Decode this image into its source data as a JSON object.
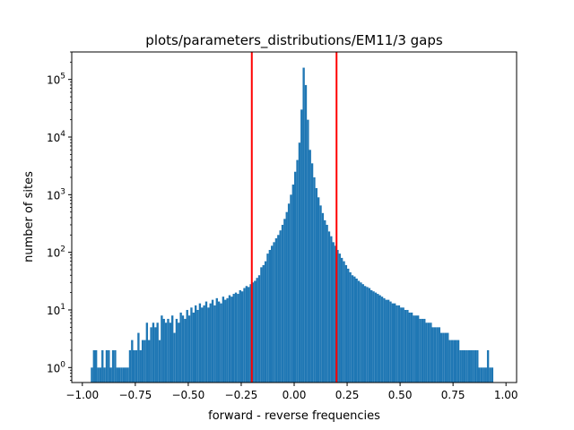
{
  "chart_data": {
    "type": "bar",
    "title": "plots/parameters_distributions/EM11/3 gaps",
    "xlabel": "forward - reverse frequencies",
    "ylabel": "number of sites",
    "xlim": [
      -1.05,
      1.05
    ],
    "ylim": [
      0.55,
      300000
    ],
    "yscale": "log",
    "grid": false,
    "bar_color": "#1f77b4",
    "line_color": "#ff0000",
    "vlines": [
      -0.2,
      0.2
    ],
    "bin_start": -0.96,
    "bin_width": 0.01,
    "values": [
      1,
      2,
      2,
      1,
      1,
      2,
      1,
      2,
      2,
      1,
      2,
      2,
      1,
      1,
      1,
      1,
      1,
      1,
      2,
      3,
      2,
      2,
      4,
      2,
      3,
      3,
      6,
      3,
      5,
      6,
      5,
      6,
      3,
      8,
      7,
      6,
      7,
      6,
      8,
      4,
      7,
      6,
      9,
      8,
      7,
      10,
      8,
      11,
      9,
      12,
      10,
      13,
      11,
      12,
      14,
      11,
      13,
      15,
      12,
      16,
      14,
      13,
      17,
      15,
      16,
      18,
      17,
      19,
      20,
      19,
      22,
      21,
      24,
      26,
      25,
      28,
      30,
      32,
      36,
      40,
      55,
      60,
      70,
      95,
      110,
      130,
      150,
      175,
      200,
      240,
      300,
      380,
      500,
      700,
      1000,
      1500,
      2500,
      4000,
      8000,
      30000,
      160000,
      80000,
      20000,
      6000,
      3500,
      2000,
      1300,
      900,
      650,
      480,
      360,
      300,
      230,
      190,
      150,
      130,
      110,
      95,
      80,
      70,
      60,
      52,
      45,
      40,
      38,
      35,
      32,
      30,
      28,
      26,
      25,
      24,
      22,
      21,
      20,
      19,
      18,
      17,
      16,
      15,
      15,
      14,
      13,
      13,
      12,
      12,
      11,
      11,
      10,
      10,
      9,
      9,
      8,
      8,
      8,
      7,
      7,
      7,
      6,
      6,
      6,
      5,
      5,
      5,
      5,
      4,
      4,
      4,
      4,
      3,
      3,
      3,
      3,
      3,
      2,
      2,
      2,
      2,
      2,
      2,
      2,
      2,
      2,
      1,
      1,
      1,
      1,
      2,
      1,
      1
    ],
    "x_ticks": [
      {
        "value": -1.0,
        "label": "−1.00"
      },
      {
        "value": -0.75,
        "label": "−0.75"
      },
      {
        "value": -0.5,
        "label": "−0.50"
      },
      {
        "value": -0.25,
        "label": "−0.25"
      },
      {
        "value": 0.0,
        "label": "0.00"
      },
      {
        "value": 0.25,
        "label": "0.25"
      },
      {
        "value": 0.5,
        "label": "0.50"
      },
      {
        "value": 0.75,
        "label": "0.75"
      },
      {
        "value": 1.0,
        "label": "1.00"
      }
    ],
    "y_ticks": [
      {
        "value": 1,
        "base": "10",
        "exp": "0"
      },
      {
        "value": 10,
        "base": "10",
        "exp": "1"
      },
      {
        "value": 100,
        "base": "10",
        "exp": "2"
      },
      {
        "value": 1000,
        "base": "10",
        "exp": "3"
      },
      {
        "value": 10000,
        "base": "10",
        "exp": "4"
      },
      {
        "value": 100000,
        "base": "10",
        "exp": "5"
      }
    ]
  }
}
